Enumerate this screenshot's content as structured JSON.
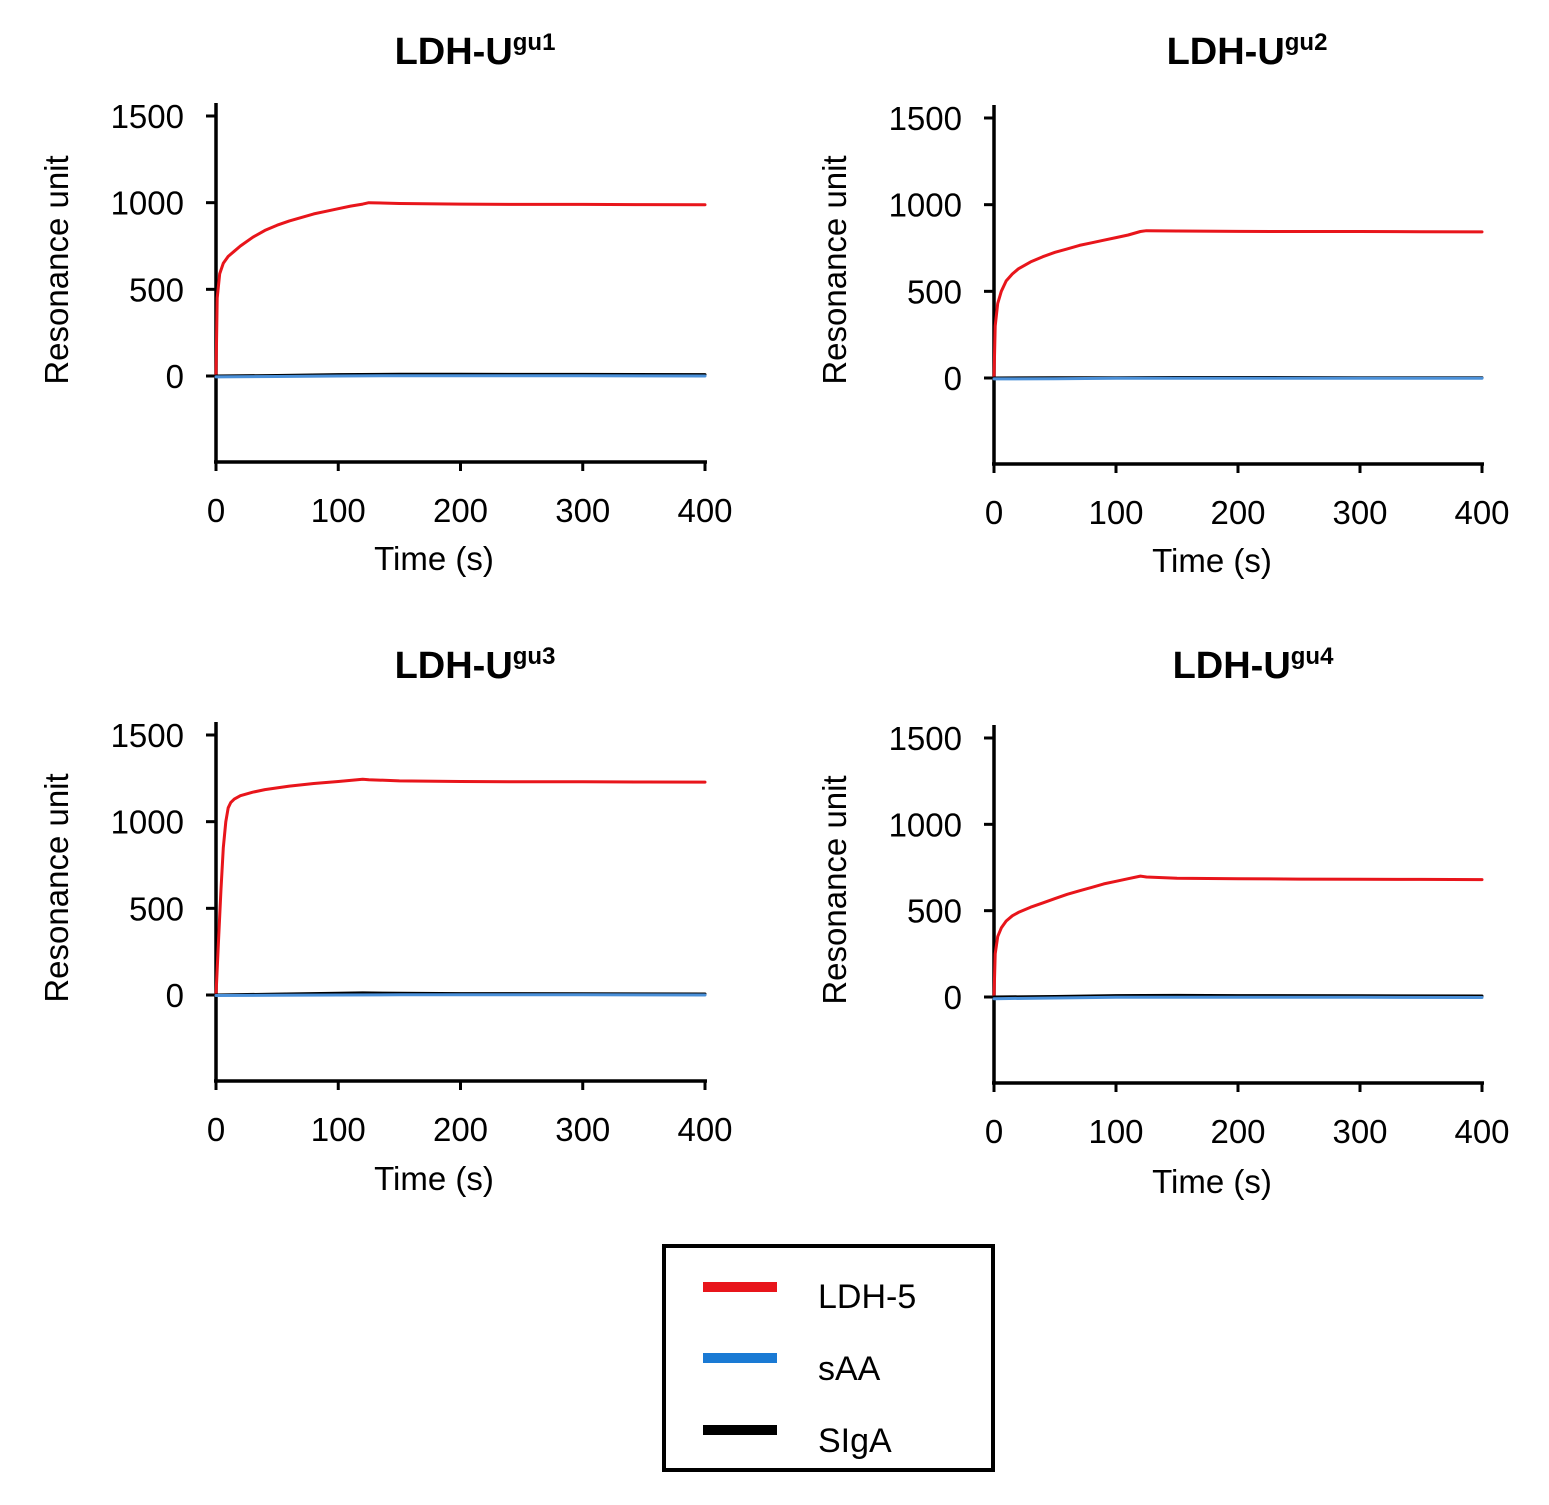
{
  "chart_data": [
    {
      "type": "line",
      "title": "LDH-U",
      "title_sup": "gu1",
      "xlabel": "Time (s)",
      "ylabel": "Resonance unit",
      "xlim": [
        0,
        400
      ],
      "ylim": [
        -500,
        1500
      ],
      "xticks": [
        0,
        100,
        200,
        300,
        400
      ],
      "yticks": [
        0,
        500,
        1000,
        1500
      ],
      "series": [
        {
          "name": "LDH-5",
          "color": "#e8151b",
          "x": [
            0,
            1,
            3,
            6,
            10,
            15,
            20,
            30,
            40,
            50,
            60,
            70,
            80,
            90,
            100,
            110,
            120,
            125,
            150,
            200,
            250,
            300,
            350,
            400
          ],
          "y": [
            0,
            450,
            590,
            650,
            690,
            720,
            750,
            800,
            840,
            870,
            895,
            915,
            935,
            950,
            965,
            980,
            992,
            1000,
            995,
            992,
            990,
            990,
            989,
            988
          ]
        },
        {
          "name": "SIgA",
          "color": "#000000",
          "x": [
            0,
            50,
            100,
            150,
            200,
            300,
            400
          ],
          "y": [
            0,
            3,
            8,
            10,
            10,
            9,
            8
          ]
        },
        {
          "name": "sAA",
          "color": "#4a90d9",
          "x": [
            0,
            50,
            100,
            150,
            200,
            300,
            400
          ],
          "y": [
            -5,
            -3,
            0,
            2,
            2,
            1,
            0
          ]
        }
      ]
    },
    {
      "type": "line",
      "title": "LDH-U",
      "title_sup": "gu2",
      "xlabel": "Time (s)",
      "ylabel": "Resonance unit",
      "xlim": [
        0,
        400
      ],
      "ylim": [
        -500,
        1500
      ],
      "xticks": [
        0,
        100,
        200,
        300,
        400
      ],
      "yticks": [
        0,
        500,
        1000,
        1500
      ],
      "series": [
        {
          "name": "LDH-5",
          "color": "#e8151b",
          "x": [
            0,
            1,
            3,
            6,
            10,
            15,
            20,
            30,
            40,
            50,
            60,
            70,
            80,
            90,
            100,
            110,
            120,
            125,
            150,
            200,
            250,
            300,
            350,
            400
          ],
          "y": [
            0,
            300,
            430,
            500,
            560,
            600,
            630,
            670,
            700,
            725,
            745,
            765,
            780,
            795,
            810,
            825,
            845,
            850,
            848,
            846,
            845,
            845,
            844,
            843
          ]
        },
        {
          "name": "SIgA",
          "color": "#000000",
          "x": [
            0,
            50,
            100,
            150,
            200,
            300,
            400
          ],
          "y": [
            0,
            1,
            2,
            3,
            3,
            2,
            2
          ]
        },
        {
          "name": "sAA",
          "color": "#4a90d9",
          "x": [
            0,
            50,
            100,
            150,
            200,
            300,
            400
          ],
          "y": [
            -5,
            -4,
            -2,
            -1,
            -1,
            -1,
            -2
          ]
        }
      ]
    },
    {
      "type": "line",
      "title": "LDH-U",
      "title_sup": "gu3",
      "xlabel": "Time (s)",
      "ylabel": "Resonance unit",
      "xlim": [
        0,
        400
      ],
      "ylim": [
        -500,
        1500
      ],
      "xticks": [
        0,
        100,
        200,
        300,
        400
      ],
      "yticks": [
        0,
        500,
        1000,
        1500
      ],
      "series": [
        {
          "name": "LDH-5",
          "color": "#e8151b",
          "x": [
            0,
            2,
            4,
            6,
            8,
            10,
            12,
            15,
            20,
            30,
            40,
            50,
            60,
            80,
            100,
            110,
            120,
            125,
            150,
            200,
            250,
            300,
            350,
            400
          ],
          "y": [
            0,
            300,
            600,
            850,
            1000,
            1080,
            1110,
            1130,
            1150,
            1170,
            1185,
            1195,
            1205,
            1220,
            1232,
            1238,
            1245,
            1242,
            1235,
            1232,
            1230,
            1230,
            1229,
            1228
          ]
        },
        {
          "name": "SIgA",
          "color": "#000000",
          "x": [
            0,
            50,
            100,
            120,
            150,
            200,
            300,
            400
          ],
          "y": [
            0,
            5,
            10,
            12,
            10,
            8,
            7,
            6
          ]
        },
        {
          "name": "sAA",
          "color": "#4a90d9",
          "x": [
            0,
            50,
            100,
            150,
            200,
            300,
            400
          ],
          "y": [
            -3,
            -2,
            0,
            1,
            1,
            1,
            0
          ]
        }
      ]
    },
    {
      "type": "line",
      "title": "LDH-U",
      "title_sup": "gu4",
      "xlabel": "Time (s)",
      "ylabel": "Resonance unit",
      "xlim": [
        0,
        400
      ],
      "ylim": [
        -500,
        1500
      ],
      "xticks": [
        0,
        100,
        200,
        300,
        400
      ],
      "yticks": [
        0,
        500,
        1000,
        1500
      ],
      "series": [
        {
          "name": "LDH-5",
          "color": "#e8151b",
          "x": [
            0,
            1,
            3,
            6,
            10,
            15,
            20,
            30,
            40,
            50,
            60,
            70,
            80,
            90,
            100,
            110,
            120,
            125,
            150,
            200,
            250,
            300,
            350,
            400
          ],
          "y": [
            0,
            250,
            350,
            400,
            440,
            470,
            490,
            520,
            545,
            570,
            595,
            615,
            635,
            655,
            670,
            685,
            700,
            695,
            688,
            685,
            683,
            682,
            681,
            680
          ]
        },
        {
          "name": "SIgA",
          "color": "#000000",
          "x": [
            0,
            50,
            100,
            150,
            200,
            300,
            400
          ],
          "y": [
            0,
            3,
            8,
            9,
            8,
            7,
            6
          ]
        },
        {
          "name": "sAA",
          "color": "#4a90d9",
          "x": [
            0,
            50,
            100,
            150,
            200,
            300,
            400
          ],
          "y": [
            -10,
            -6,
            -2,
            -1,
            -1,
            -2,
            -3
          ]
        }
      ]
    }
  ],
  "legend": {
    "items": [
      {
        "label": "LDH-5",
        "color": "#e8151b"
      },
      {
        "label": "sAA",
        "color": "#1a7ad4"
      },
      {
        "label": "SIgA",
        "color": "#000000"
      }
    ]
  }
}
